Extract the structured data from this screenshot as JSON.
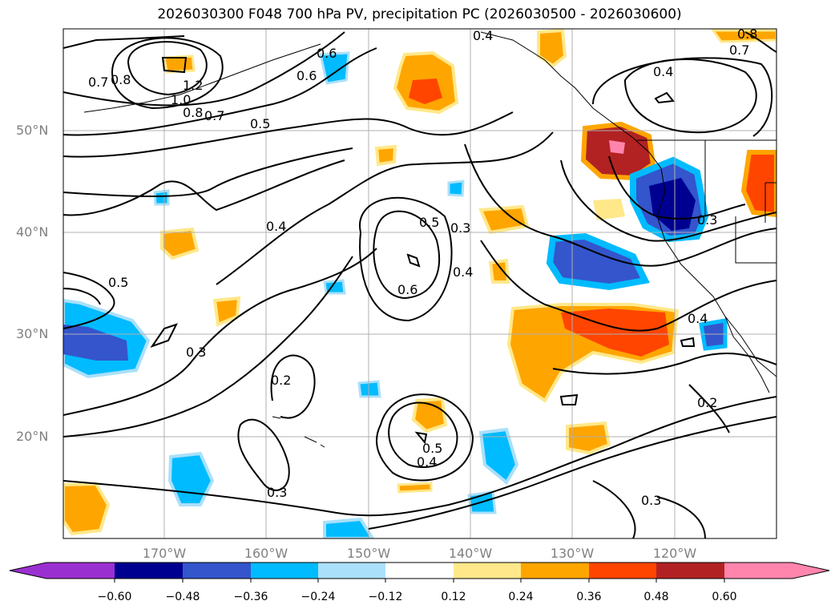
{
  "title": "2026030300 F048 700 hPa PV, precipitation PC (2026030500 - 2026030600)",
  "lat_labels": [
    "50°N",
    "40°N",
    "30°N",
    "20°N"
  ],
  "lon_labels": [
    "170°W",
    "160°W",
    "150°W",
    "140°W",
    "130°W",
    "120°W"
  ],
  "contour_labels": [
    "0.7",
    "0.8",
    "1.2",
    "1.0",
    "0.8",
    "0.7",
    "0.6",
    "0.6",
    "0.5",
    "0.4",
    "0.4",
    "0.5",
    "0.5",
    "0.3",
    "0.3",
    "0.4",
    "0.6",
    "0.3",
    "0.2",
    "0.5",
    "0.4",
    "0.3",
    "0.3",
    "0.4",
    "0.2",
    "0.8",
    "0.7",
    "0.4"
  ],
  "colorbar": {
    "ticks": [
      "−0.60",
      "−0.48",
      "−0.36",
      "−0.24",
      "−0.12",
      "0.12",
      "0.24",
      "0.36",
      "0.48",
      "0.60"
    ],
    "colors": [
      "#9b30d0",
      "#000090",
      "#3455cc",
      "#00bbff",
      "#aae0fa",
      "#ffffff",
      "#ffe88a",
      "#ffa500",
      "#ff4500",
      "#b22222",
      "#ff85ad"
    ]
  },
  "colors": {
    "grid": "#b0b0b0",
    "tick_text": "#808080"
  }
}
